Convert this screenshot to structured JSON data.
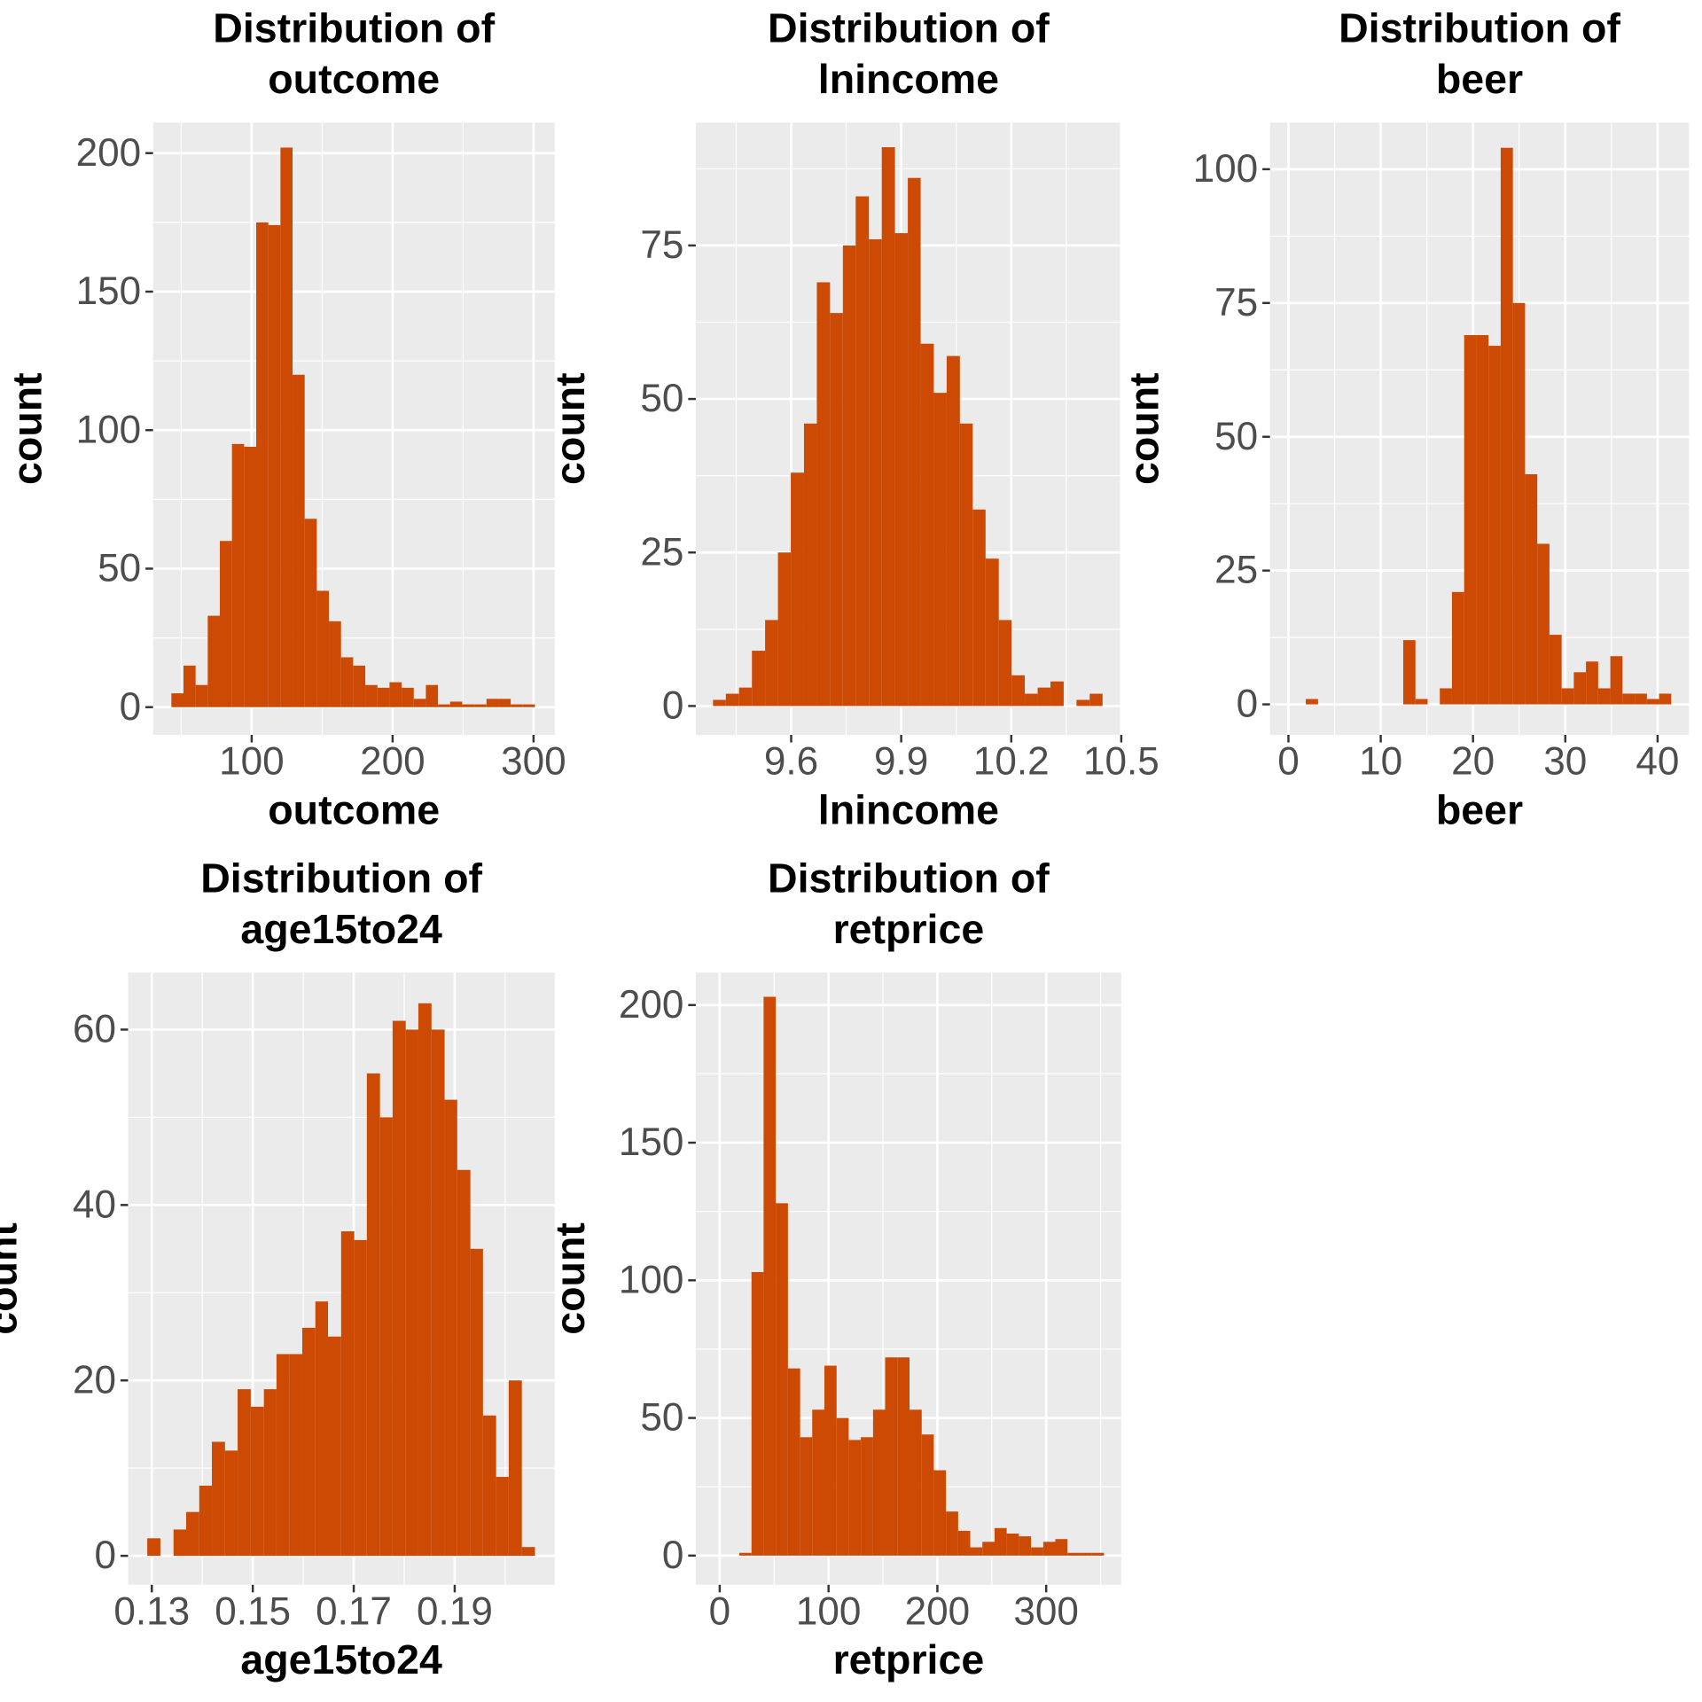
{
  "chart_data": [
    {
      "type": "histogram",
      "title": "Distribution of outcome",
      "x_label": "outcome",
      "y_label": "count",
      "color": "#cc4a04",
      "grid": true,
      "bins": [
        43,
        51.6,
        60.2,
        68.8,
        77.4,
        86,
        94.6,
        103.2,
        111.8,
        120.4,
        129,
        137.6,
        146.2,
        154.8,
        163.4,
        172,
        180.6,
        189.2,
        197.8,
        206.4,
        215,
        223.6,
        232.2,
        240.8,
        249.4,
        258,
        266.6,
        275.2,
        283.8,
        292.4,
        301
      ],
      "values": [
        5,
        15,
        8,
        33,
        60,
        95,
        94,
        175,
        174,
        202,
        120,
        68,
        42,
        31,
        18,
        15,
        8,
        7,
        9,
        7,
        3,
        8,
        1,
        2,
        1,
        1,
        3,
        3,
        1,
        1
      ],
      "xlim": [
        30,
        315
      ],
      "xticks": [
        100,
        200,
        300
      ],
      "ylim": [
        -10,
        211
      ],
      "yticks": [
        0,
        50,
        100,
        150,
        200
      ]
    },
    {
      "type": "histogram",
      "title": "Distribution of lnincome",
      "x_label": "lnincome",
      "y_label": "count",
      "color": "#cc4a04",
      "grid": true,
      "bins": [
        9.387,
        9.422,
        9.458,
        9.493,
        9.529,
        9.564,
        9.599,
        9.635,
        9.67,
        9.706,
        9.741,
        9.776,
        9.812,
        9.847,
        9.883,
        9.918,
        9.953,
        9.989,
        10.024,
        10.06,
        10.095,
        10.13,
        10.166,
        10.201,
        10.237,
        10.272,
        10.307,
        10.343,
        10.378,
        10.414,
        10.449
      ],
      "values": [
        1,
        2,
        3,
        9,
        14,
        25,
        38,
        46,
        69,
        64,
        75,
        83,
        76,
        91,
        77,
        86,
        59,
        51,
        57,
        46,
        32,
        24,
        14,
        5,
        2,
        3,
        4,
        0,
        1,
        2
      ],
      "xlim": [
        9.34,
        10.5
      ],
      "xticks": [
        9.6,
        9.9,
        10.2,
        10.5
      ],
      "ylim": [
        -4.7,
        95
      ],
      "yticks": [
        0,
        25,
        50,
        75
      ]
    },
    {
      "type": "histogram",
      "title": "Distribution of beer",
      "x_label": "beer",
      "y_label": "count",
      "color": "#cc4a04",
      "grid": true,
      "bins": [
        1.88,
        3.2,
        4.52,
        5.84,
        7.16,
        8.48,
        9.8,
        11.12,
        12.44,
        13.76,
        15.08,
        16.4,
        17.72,
        19.04,
        20.36,
        21.68,
        23,
        24.32,
        25.64,
        26.96,
        28.28,
        29.6,
        30.92,
        32.24,
        33.56,
        34.88,
        36.2,
        37.52,
        38.84,
        40.16,
        41.48
      ],
      "values": [
        1,
        0,
        0,
        0,
        0,
        0,
        0,
        0,
        12,
        1,
        0,
        3,
        21,
        69,
        69,
        67,
        104,
        75,
        43,
        30,
        13,
        3,
        6,
        8,
        3,
        9,
        2,
        2,
        1,
        2
      ],
      "xlim": [
        -2,
        43.4
      ],
      "xticks": [
        0,
        10,
        20,
        30,
        40
      ],
      "ylim": [
        -5.7,
        108.7
      ],
      "yticks": [
        0,
        25,
        50,
        75,
        100
      ]
    },
    {
      "type": "histogram",
      "title": "Distribution of age15to24",
      "x_label": "age15to24",
      "y_label": "count",
      "color": "#cc4a04",
      "grid": true,
      "bins": [
        0.1291,
        0.1317,
        0.1343,
        0.1368,
        0.1394,
        0.1419,
        0.1445,
        0.147,
        0.1496,
        0.1522,
        0.1547,
        0.1573,
        0.1598,
        0.1624,
        0.1649,
        0.1675,
        0.1701,
        0.1726,
        0.1752,
        0.1777,
        0.1803,
        0.1828,
        0.1854,
        0.188,
        0.1905,
        0.1931,
        0.1956,
        0.1982,
        0.2007,
        0.2033,
        0.2059
      ],
      "values": [
        2,
        0,
        3,
        5,
        8,
        13,
        12,
        19,
        17,
        19,
        23,
        23,
        26,
        29,
        25,
        37,
        36,
        55,
        50,
        61,
        60,
        63,
        60,
        52,
        44,
        35,
        16,
        9,
        20,
        1
      ],
      "xlim": [
        0.1253,
        0.2098
      ],
      "xticks": [
        0.13,
        0.15,
        0.17,
        0.19
      ],
      "ylim": [
        -3.3,
        66.5
      ],
      "yticks": [
        0,
        20,
        40,
        60
      ]
    },
    {
      "type": "histogram",
      "title": "Distribution of retprice",
      "x_label": "retprice",
      "y_label": "count",
      "color": "#cc4a04",
      "grid": true,
      "bins": [
        18,
        29.2,
        40.3,
        51.5,
        62.7,
        73.9,
        85,
        96.2,
        107.4,
        118.5,
        129.7,
        140.9,
        152,
        163.2,
        174.4,
        185.6,
        196.7,
        207.9,
        219.1,
        230.2,
        241.4,
        252.6,
        263.7,
        274.9,
        286.1,
        297.3,
        308.4,
        319.6,
        330.8,
        341.9,
        353.1
      ],
      "values": [
        1,
        103,
        203,
        128,
        68,
        43,
        53,
        69,
        50,
        42,
        43,
        53,
        72,
        72,
        53,
        44,
        31,
        16,
        9,
        3,
        5,
        10,
        8,
        7,
        3,
        5,
        6,
        1,
        1,
        1
      ],
      "xlim": [
        -22,
        369
      ],
      "xticks": [
        0,
        100,
        200,
        300
      ],
      "ylim": [
        -10.6,
        211.8
      ],
      "yticks": [
        0,
        50,
        100,
        150,
        200
      ]
    }
  ]
}
